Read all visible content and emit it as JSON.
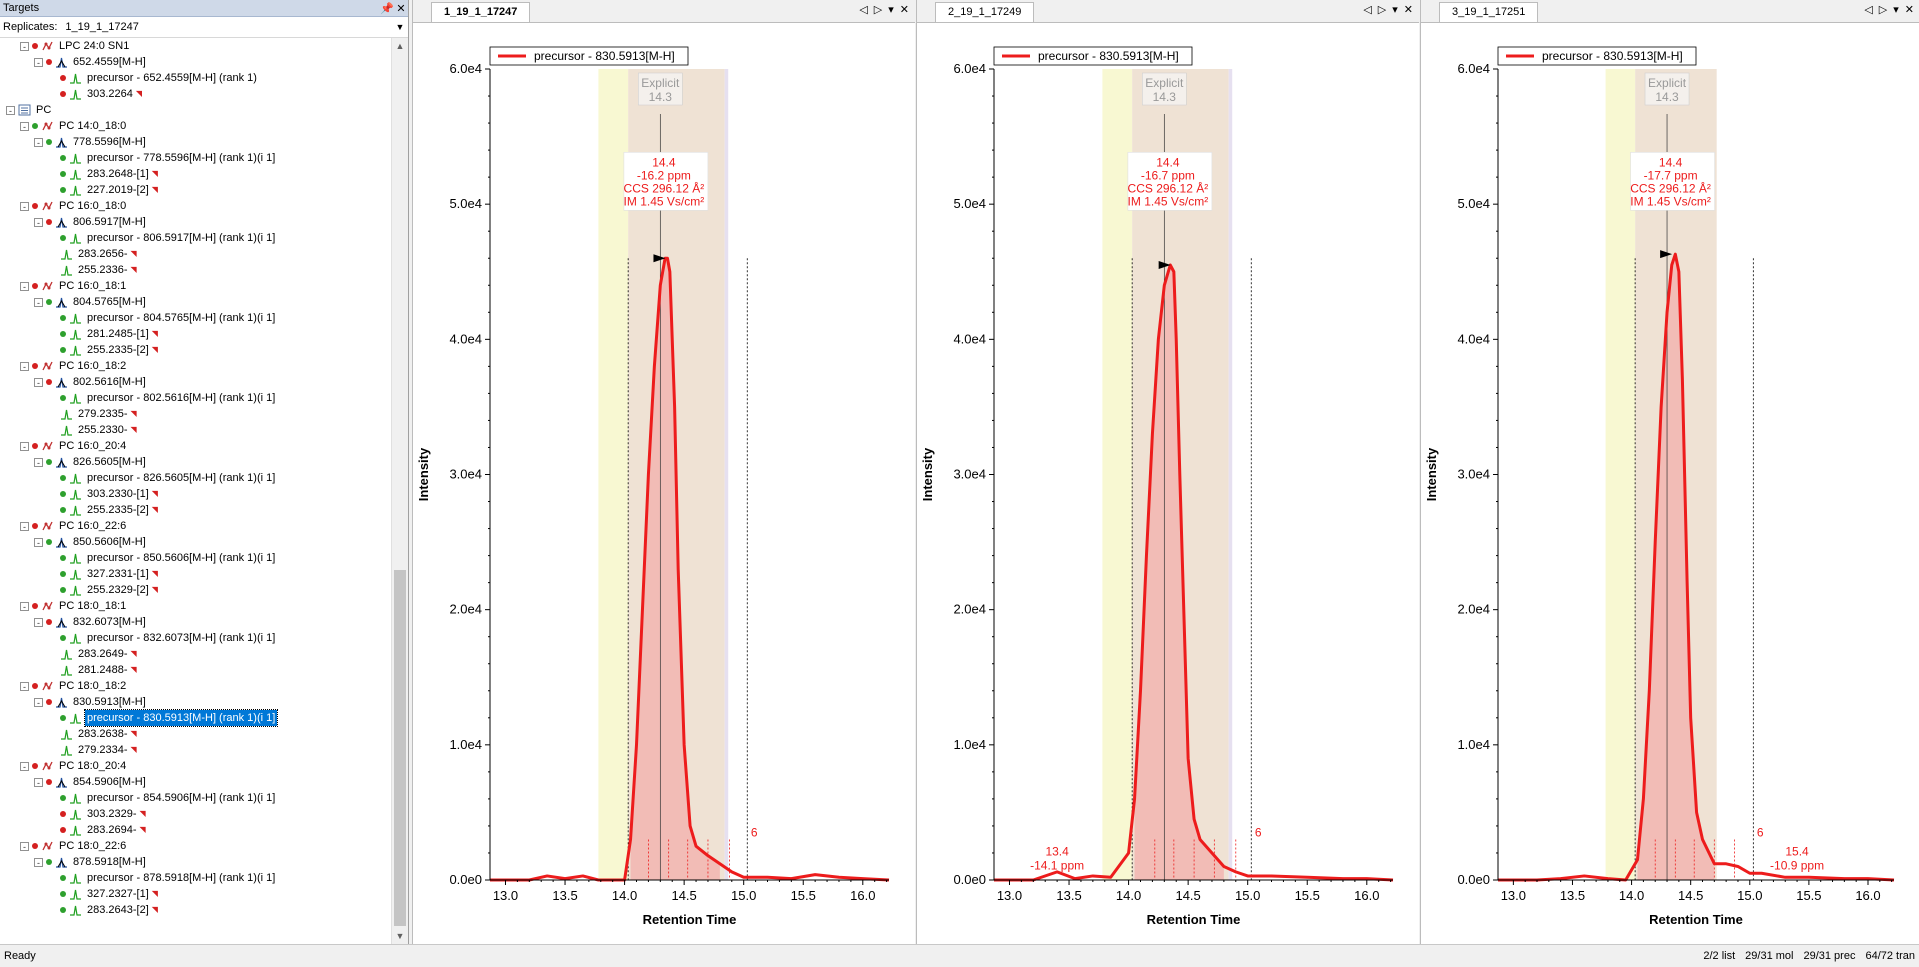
{
  "targets": {
    "title": "Targets",
    "pin_icon": "pin-icon",
    "close_icon": "close-icon",
    "replicates_label": "Replicates:",
    "replicate_value": "1_19_1_17247"
  },
  "tree": [
    {
      "level": 1,
      "exp": "-",
      "dots": [
        "red"
      ],
      "icon": "molecule-icon",
      "text": "LPC 24:0 SN1"
    },
    {
      "level": 2,
      "exp": "-",
      "dots": [
        "red"
      ],
      "icon": "peak-icon",
      "text": "652.4559[M-H]"
    },
    {
      "level": 3,
      "dots": [
        "red"
      ],
      "icon": "peak-red-icon",
      "text": "precursor - 652.4559[M-H] (rank 1)"
    },
    {
      "level": 3,
      "dots": [
        "red"
      ],
      "icon": "peak-green-icon",
      "text": "303.2264",
      "flag": true
    },
    {
      "level": 0,
      "exp": "-",
      "dots": [],
      "icon": "list-icon",
      "text": "PC"
    },
    {
      "level": 1,
      "exp": "-",
      "dots": [
        "green"
      ],
      "icon": "molecule-icon",
      "text": "PC 14:0_18:0"
    },
    {
      "level": 2,
      "exp": "-",
      "dots": [
        "green"
      ],
      "icon": "peak-icon",
      "text": "778.5596[M-H]"
    },
    {
      "level": 3,
      "dots": [
        "green"
      ],
      "icon": "peak-red-icon",
      "text": "precursor - 778.5596[M-H] (rank 1)(i 1]"
    },
    {
      "level": 3,
      "dots": [
        "green"
      ],
      "icon": "peak-green-icon",
      "text": "283.2648-[1]",
      "flag": true
    },
    {
      "level": 3,
      "dots": [
        "green"
      ],
      "icon": "peak-green-icon",
      "text": "227.2019-[2]",
      "flag": true
    },
    {
      "level": 1,
      "exp": "-",
      "dots": [
        "red"
      ],
      "icon": "molecule-icon",
      "text": "PC 16:0_18:0"
    },
    {
      "level": 2,
      "exp": "-",
      "dots": [
        "red"
      ],
      "icon": "peak-icon",
      "text": "806.5917[M-H]"
    },
    {
      "level": 3,
      "dots": [
        "green"
      ],
      "icon": "peak-red-icon",
      "text": "precursor - 806.5917[M-H] (rank 1)(i 1]"
    },
    {
      "level": 3,
      "dots": [],
      "icon": "peak-green-icon",
      "text": "283.2656-",
      "flag": true
    },
    {
      "level": 3,
      "dots": [],
      "icon": "peak-green-icon",
      "text": "255.2336-",
      "flag": true
    },
    {
      "level": 1,
      "exp": "-",
      "dots": [
        "red"
      ],
      "icon": "molecule-icon",
      "text": "PC 16:0_18:1"
    },
    {
      "level": 2,
      "exp": "-",
      "dots": [
        "green"
      ],
      "icon": "peak-icon",
      "text": "804.5765[M-H]"
    },
    {
      "level": 3,
      "dots": [
        "green"
      ],
      "icon": "peak-red-icon",
      "text": "precursor - 804.5765[M-H] (rank 1)(i 1]"
    },
    {
      "level": 3,
      "dots": [
        "green"
      ],
      "icon": "peak-green-icon",
      "text": "281.2485-[1]",
      "flag": true
    },
    {
      "level": 3,
      "dots": [
        "green"
      ],
      "icon": "peak-green-icon",
      "text": "255.2335-[2]",
      "flag": true
    },
    {
      "level": 1,
      "exp": "-",
      "dots": [
        "red"
      ],
      "icon": "molecule-icon",
      "text": "PC 16:0_18:2"
    },
    {
      "level": 2,
      "exp": "-",
      "dots": [
        "red"
      ],
      "icon": "peak-icon",
      "text": "802.5616[M-H]"
    },
    {
      "level": 3,
      "dots": [
        "green"
      ],
      "icon": "peak-red-icon",
      "text": "precursor - 802.5616[M-H] (rank 1)(i 1]"
    },
    {
      "level": 3,
      "dots": [],
      "icon": "peak-green-icon",
      "text": "279.2335-",
      "flag": true
    },
    {
      "level": 3,
      "dots": [],
      "icon": "peak-green-icon",
      "text": "255.2330-",
      "flag": true
    },
    {
      "level": 1,
      "exp": "-",
      "dots": [
        "red"
      ],
      "icon": "molecule-icon",
      "text": "PC 16:0_20:4"
    },
    {
      "level": 2,
      "exp": "-",
      "dots": [
        "green"
      ],
      "icon": "peak-icon",
      "text": "826.5605[M-H]"
    },
    {
      "level": 3,
      "dots": [
        "green"
      ],
      "icon": "peak-red-icon",
      "text": "precursor - 826.5605[M-H] (rank 1)(i 1]"
    },
    {
      "level": 3,
      "dots": [
        "green"
      ],
      "icon": "peak-green-icon",
      "text": "303.2330-[1]",
      "flag": true
    },
    {
      "level": 3,
      "dots": [
        "green"
      ],
      "icon": "peak-green-icon",
      "text": "255.2335-[2]",
      "flag": true
    },
    {
      "level": 1,
      "exp": "-",
      "dots": [
        "red"
      ],
      "icon": "molecule-icon",
      "text": "PC 16:0_22:6"
    },
    {
      "level": 2,
      "exp": "-",
      "dots": [
        "green"
      ],
      "icon": "peak-icon",
      "text": "850.5606[M-H]"
    },
    {
      "level": 3,
      "dots": [
        "green"
      ],
      "icon": "peak-red-icon",
      "text": "precursor - 850.5606[M-H] (rank 1)(i 1]"
    },
    {
      "level": 3,
      "dots": [
        "green"
      ],
      "icon": "peak-green-icon",
      "text": "327.2331-[1]",
      "flag": true
    },
    {
      "level": 3,
      "dots": [
        "green"
      ],
      "icon": "peak-green-icon",
      "text": "255.2329-[2]",
      "flag": true
    },
    {
      "level": 1,
      "exp": "-",
      "dots": [
        "red"
      ],
      "icon": "molecule-icon",
      "text": "PC 18:0_18:1"
    },
    {
      "level": 2,
      "exp": "-",
      "dots": [
        "red"
      ],
      "icon": "peak-icon",
      "text": "832.6073[M-H]"
    },
    {
      "level": 3,
      "dots": [
        "green"
      ],
      "icon": "peak-red-icon",
      "text": "precursor - 832.6073[M-H] (rank 1)(i 1]"
    },
    {
      "level": 3,
      "dots": [],
      "icon": "peak-green-icon",
      "text": "283.2649-",
      "flag": true
    },
    {
      "level": 3,
      "dots": [],
      "icon": "peak-green-icon",
      "text": "281.2488-",
      "flag": true
    },
    {
      "level": 1,
      "exp": "-",
      "dots": [
        "red"
      ],
      "icon": "molecule-icon",
      "text": "PC 18:0_18:2"
    },
    {
      "level": 2,
      "exp": "-",
      "dots": [
        "red"
      ],
      "icon": "peak-icon",
      "text": "830.5913[M-H]"
    },
    {
      "level": 3,
      "dots": [
        "green"
      ],
      "icon": "peak-red-icon",
      "text": "precursor - 830.5913[M-H] (rank 1)(i 1]",
      "selected": true
    },
    {
      "level": 3,
      "dots": [],
      "icon": "peak-green-icon",
      "text": "283.2638-",
      "flag": true
    },
    {
      "level": 3,
      "dots": [],
      "icon": "peak-green-icon",
      "text": "279.2334-",
      "flag": true
    },
    {
      "level": 1,
      "exp": "-",
      "dots": [
        "red"
      ],
      "icon": "molecule-icon",
      "text": "PC 18:0_20:4"
    },
    {
      "level": 2,
      "exp": "-",
      "dots": [
        "red"
      ],
      "icon": "peak-icon",
      "text": "854.5906[M-H]"
    },
    {
      "level": 3,
      "dots": [
        "green"
      ],
      "icon": "peak-red-icon",
      "text": "precursor - 854.5906[M-H] (rank 1)(i 1]"
    },
    {
      "level": 3,
      "dots": [
        "red"
      ],
      "icon": "peak-green-icon",
      "text": "303.2329-",
      "flag": true
    },
    {
      "level": 3,
      "dots": [
        "red"
      ],
      "icon": "peak-green-icon",
      "text": "283.2694-",
      "flag": true
    },
    {
      "level": 1,
      "exp": "-",
      "dots": [
        "red"
      ],
      "icon": "molecule-icon",
      "text": "PC 18:0_22:6"
    },
    {
      "level": 2,
      "exp": "-",
      "dots": [
        "green"
      ],
      "icon": "peak-icon",
      "text": "878.5918[M-H]"
    },
    {
      "level": 3,
      "dots": [
        "green"
      ],
      "icon": "peak-red-icon",
      "text": "precursor - 878.5918[M-H] (rank 1)(i 1]"
    },
    {
      "level": 3,
      "dots": [
        "green"
      ],
      "icon": "peak-green-icon",
      "text": "327.2327-[1]",
      "flag": true
    },
    {
      "level": 3,
      "dots": [
        "green"
      ],
      "icon": "peak-green-icon",
      "text": "283.2643-[2]",
      "flag": true
    }
  ],
  "status": {
    "text": "Ready",
    "list": "2/2 list",
    "mol": "29/31 mol",
    "prec": "29/31 prec",
    "tran": "64/72 tran"
  },
  "colors": {
    "trace": "#ed1c1c",
    "fill": "#f2b8b2",
    "integration_band": "#efe2d4",
    "yellow_band": "#f8f8d2",
    "lavender_band": "#e6e0f0",
    "selection": "#0078d7"
  },
  "chart_data": [
    {
      "type": "line",
      "tab": "1_19_1_17247",
      "tab_active": true,
      "legend": "precursor - 830.5913[M-H]",
      "xlabel": "Retention Time",
      "ylabel": "Intensity",
      "xlim": [
        12.87,
        16.22
      ],
      "ylim": [
        0,
        60000
      ],
      "x_ticks": [
        "13.0",
        "13.5",
        "14.0",
        "14.5",
        "15.0",
        "15.5",
        "16.0"
      ],
      "y_ticks": [
        "0.0e0",
        "1.0e4",
        "2.0e4",
        "3.0e4",
        "4.0e4",
        "5.0e4",
        "6.0e4"
      ],
      "x_tick_values": [
        13.0,
        13.5,
        14.0,
        14.5,
        15.0,
        15.5,
        16.0
      ],
      "y_tick_values": [
        0,
        10000,
        20000,
        30000,
        40000,
        50000,
        60000
      ],
      "yellow_band": [
        13.78,
        14.03
      ],
      "integration_band": [
        14.03,
        14.84
      ],
      "lavender_band": [
        14.84,
        14.87
      ],
      "explicit_line": 14.3,
      "explicit_label": [
        "Explicit",
        "14.3"
      ],
      "peak_label": [
        "14.4",
        "-16.2 ppm",
        "CCS 296.12 Å²",
        "IM 1.45 Vs/cm²"
      ],
      "peak_label_at": [
        14.33,
        52800
      ],
      "marker": [
        14.36,
        46000
      ],
      "black_dashed": [
        14.03,
        15.03
      ],
      "black_dashed_top": 46000,
      "red_dashed": [
        14.2,
        14.37,
        14.53,
        14.7,
        14.88
      ],
      "red_dashed_top": 3000,
      "count_label": "6",
      "count_label_at": [
        15.06,
        3200
      ],
      "extra_labels": [],
      "x": [
        12.87,
        13.0,
        13.2,
        13.35,
        13.5,
        13.65,
        13.78,
        13.9,
        14.0,
        14.05,
        14.1,
        14.15,
        14.2,
        14.25,
        14.3,
        14.34,
        14.36,
        14.38,
        14.42,
        14.45,
        14.5,
        14.55,
        14.6,
        14.7,
        14.8,
        14.9,
        15.0,
        15.2,
        15.4,
        15.6,
        15.8,
        16.0,
        16.22
      ],
      "y": [
        0,
        0,
        0,
        300,
        100,
        300,
        0,
        0,
        0,
        3000,
        10000,
        20000,
        30000,
        38000,
        44000,
        46000,
        46000,
        45000,
        35000,
        23000,
        10000,
        4000,
        2500,
        1800,
        1200,
        600,
        200,
        200,
        100,
        400,
        200,
        100,
        0
      ]
    },
    {
      "type": "line",
      "tab": "2_19_1_17249",
      "tab_active": false,
      "legend": "precursor - 830.5913[M-H]",
      "xlabel": "Retention Time",
      "ylabel": "Intensity",
      "xlim": [
        12.87,
        16.22
      ],
      "ylim": [
        0,
        60000
      ],
      "x_ticks": [
        "13.0",
        "13.5",
        "14.0",
        "14.5",
        "15.0",
        "15.5",
        "16.0"
      ],
      "y_ticks": [
        "0.0e0",
        "1.0e4",
        "2.0e4",
        "3.0e4",
        "4.0e4",
        "5.0e4",
        "6.0e4"
      ],
      "x_tick_values": [
        13.0,
        13.5,
        14.0,
        14.5,
        15.0,
        15.5,
        16.0
      ],
      "y_tick_values": [
        0,
        10000,
        20000,
        30000,
        40000,
        50000,
        60000
      ],
      "yellow_band": [
        13.78,
        14.03
      ],
      "integration_band": [
        14.03,
        14.84
      ],
      "lavender_band": [
        14.84,
        14.87
      ],
      "explicit_line": 14.3,
      "explicit_label": [
        "Explicit",
        "14.3"
      ],
      "peak_label": [
        "14.4",
        "-16.7 ppm",
        "CCS 296.12 Å²",
        "IM 1.45 Vs/cm²"
      ],
      "peak_label_at": [
        14.33,
        52800
      ],
      "marker": [
        14.37,
        45500
      ],
      "black_dashed": [
        14.03,
        15.03
      ],
      "black_dashed_top": 46000,
      "red_dashed": [
        14.22,
        14.38,
        14.55,
        14.72,
        14.9
      ],
      "red_dashed_top": 3000,
      "count_label": "6",
      "count_label_at": [
        15.06,
        3200
      ],
      "extra_labels": [
        {
          "lines": [
            "13.4",
            "-14.1 ppm"
          ],
          "x": 13.4,
          "y": 1800
        }
      ],
      "x": [
        12.87,
        13.0,
        13.2,
        13.4,
        13.55,
        13.7,
        13.85,
        14.0,
        14.05,
        14.1,
        14.15,
        14.2,
        14.25,
        14.3,
        14.35,
        14.38,
        14.4,
        14.43,
        14.47,
        14.5,
        14.55,
        14.6,
        14.7,
        14.8,
        14.9,
        15.0,
        15.2,
        15.5,
        15.8,
        16.0,
        16.22
      ],
      "y": [
        0,
        0,
        0,
        600,
        100,
        300,
        200,
        2000,
        6000,
        14000,
        24000,
        33000,
        40000,
        44000,
        45500,
        45000,
        40000,
        30000,
        18000,
        9000,
        4500,
        3000,
        2000,
        1000,
        600,
        300,
        300,
        200,
        100,
        100,
        0
      ]
    },
    {
      "type": "line",
      "tab": "3_19_1_17251",
      "tab_active": false,
      "legend": "precursor - 830.5913[M-H]",
      "xlabel": "Retention Time",
      "ylabel": "Intensity",
      "xlim": [
        12.87,
        16.22
      ],
      "ylim": [
        0,
        60000
      ],
      "x_ticks": [
        "13.0",
        "13.5",
        "14.0",
        "14.5",
        "15.0",
        "15.5",
        "16.0"
      ],
      "y_ticks": [
        "0.0e0",
        "1.0e4",
        "2.0e4",
        "3.0e4",
        "4.0e4",
        "5.0e4",
        "6.0e4"
      ],
      "x_tick_values": [
        13.0,
        13.5,
        14.0,
        14.5,
        15.0,
        15.5,
        16.0
      ],
      "y_tick_values": [
        0,
        10000,
        20000,
        30000,
        40000,
        50000,
        60000
      ],
      "yellow_band": [
        13.78,
        14.03
      ],
      "integration_band": [
        14.03,
        14.72
      ],
      "lavender_band": [
        14.72,
        14.72
      ],
      "explicit_line": 14.3,
      "explicit_label": [
        "Explicit",
        "14.3"
      ],
      "peak_label": [
        "14.4",
        "-17.7 ppm",
        "CCS 296.12 Å²",
        "IM 1.45 Vs/cm²"
      ],
      "peak_label_at": [
        14.33,
        52800
      ],
      "marker": [
        14.36,
        46300
      ],
      "black_dashed": [
        14.03,
        15.03
      ],
      "black_dashed_top": 46000,
      "red_dashed": [
        14.2,
        14.37,
        14.53,
        14.7,
        14.87
      ],
      "red_dashed_top": 3000,
      "count_label": "6",
      "count_label_at": [
        15.06,
        3200
      ],
      "extra_labels": [
        {
          "lines": [
            "15.4",
            "-10.9 ppm"
          ],
          "x": 15.4,
          "y": 1800
        }
      ],
      "x": [
        12.87,
        13.0,
        13.2,
        13.4,
        13.6,
        13.8,
        13.95,
        14.05,
        14.1,
        14.15,
        14.2,
        14.25,
        14.3,
        14.34,
        14.37,
        14.4,
        14.43,
        14.47,
        14.5,
        14.55,
        14.6,
        14.7,
        14.8,
        14.9,
        15.0,
        15.1,
        15.3,
        15.5,
        15.8,
        16.0,
        16.22
      ],
      "y": [
        0,
        0,
        0,
        100,
        300,
        100,
        0,
        1500,
        6000,
        14000,
        25000,
        35000,
        42000,
        45500,
        46300,
        45000,
        37000,
        22000,
        12000,
        5000,
        3000,
        1200,
        1200,
        1000,
        500,
        500,
        200,
        200,
        100,
        100,
        0
      ]
    }
  ]
}
